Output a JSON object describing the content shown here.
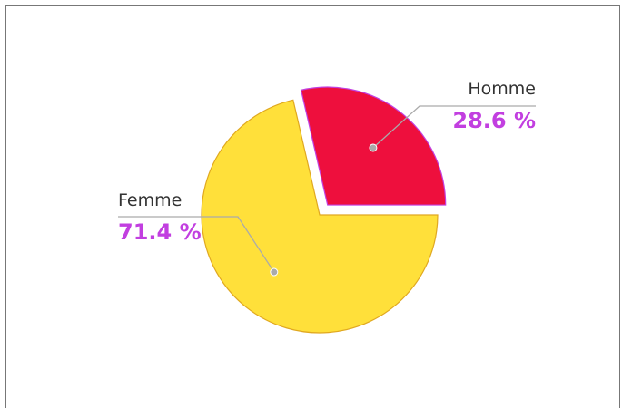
{
  "chart_data": {
    "type": "pie",
    "categories": [
      "Homme",
      "Femme"
    ],
    "values": [
      28.6,
      71.4
    ],
    "value_labels": [
      "28.6 %",
      "71.4 %"
    ],
    "colors": [
      "#ee0f3d",
      "#ffe03a"
    ]
  }
}
